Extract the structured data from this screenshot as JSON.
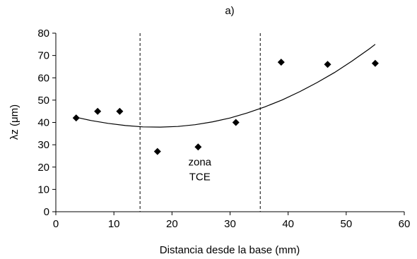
{
  "chart_data": {
    "type": "scatter",
    "title": "a)",
    "xlabel": "Distancia desde la base (mm)",
    "ylabel": "λz (μm)",
    "xlim": [
      0,
      60
    ],
    "ylim": [
      0,
      80
    ],
    "xticks": [
      0,
      10,
      20,
      30,
      40,
      50,
      60
    ],
    "yticks": [
      0,
      10,
      20,
      30,
      40,
      50,
      60,
      70,
      80
    ],
    "grid": false,
    "legend": "none",
    "series": [
      {
        "marker": "diamond",
        "color": "#000000",
        "x": [
          3.5,
          7.2,
          11.0,
          17.5,
          24.5,
          31.0,
          38.8,
          46.8,
          55.0
        ],
        "y": [
          42,
          45,
          45,
          27,
          29,
          40,
          67,
          66,
          66.5
        ]
      }
    ],
    "trendline": {
      "type": "polynomial",
      "color": "#000000",
      "x": [
        3.5,
        6,
        9,
        12,
        15,
        18,
        21,
        24,
        27,
        30,
        33,
        36,
        39,
        42,
        45,
        48,
        51,
        54,
        55
      ],
      "y": [
        42.3,
        40.9,
        39.6,
        38.6,
        38.0,
        37.9,
        38.2,
        39.0,
        40.3,
        42.0,
        44.3,
        47.0,
        50.1,
        53.8,
        57.9,
        62.4,
        67.5,
        73.0,
        75.0
      ]
    },
    "vlines": [
      14.5,
      35.2
    ],
    "annotations": [
      {
        "lines": [
          "zona",
          "TCE"
        ],
        "x": 24.8,
        "y": 14
      }
    ]
  }
}
